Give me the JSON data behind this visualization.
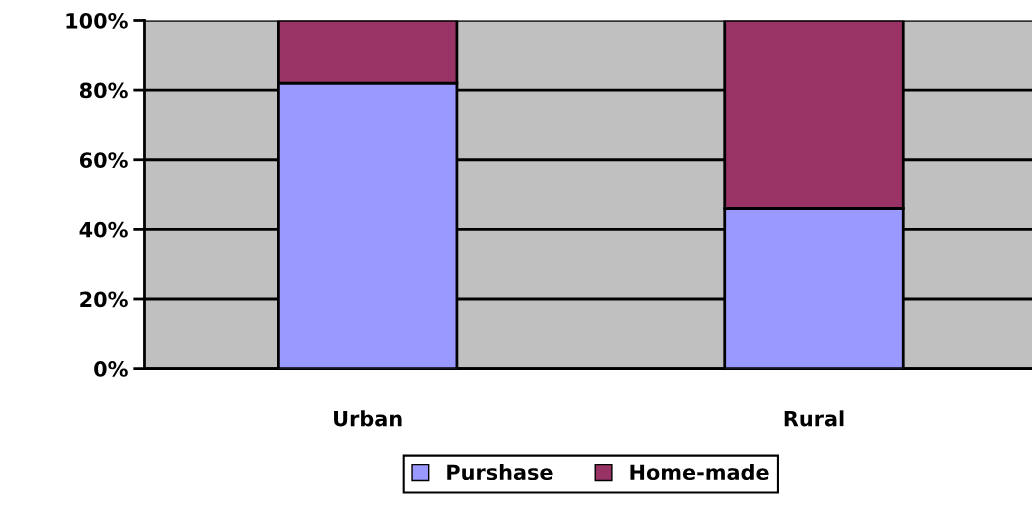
{
  "chart_data": {
    "type": "bar",
    "stacked": true,
    "categories": [
      "Urban",
      "Rural"
    ],
    "series": [
      {
        "name": "Purshase",
        "color": "#9999ff",
        "values": [
          82,
          46
        ]
      },
      {
        "name": "Home-made",
        "color": "#993366",
        "values": [
          18,
          54
        ]
      }
    ],
    "ylim": [
      0,
      100
    ],
    "yticks": [
      {
        "value": 0,
        "label": "0%"
      },
      {
        "value": 20,
        "label": "20%"
      },
      {
        "value": 40,
        "label": "40%"
      },
      {
        "value": 60,
        "label": "60%"
      },
      {
        "value": 80,
        "label": "80%"
      },
      {
        "value": 100,
        "label": "100%"
      }
    ],
    "grid": "y",
    "legend": "bottom"
  }
}
